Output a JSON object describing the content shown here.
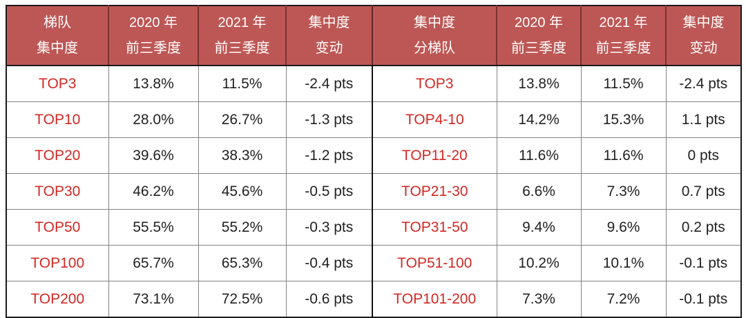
{
  "colors": {
    "header_background": "#bd5755",
    "header_divider": "#7a3331",
    "header_text": "#ffffff",
    "outer_border": "#1a1a1a",
    "grid_line": "#828282",
    "center_divider": "#111111",
    "tier_label_red": "#d22823",
    "value_text": "#212121"
  },
  "chart_data": {
    "type": "table",
    "columns": [
      {
        "key": "tier-left",
        "label": "梯队\n集中度"
      },
      {
        "key": "y2020-left",
        "label": "2020 年\n前三季度"
      },
      {
        "key": "y2021-left",
        "label": "2021 年\n前三季度"
      },
      {
        "key": "change-left",
        "label": "集中度\n变动"
      },
      {
        "key": "tier-right",
        "label": "集中度\n分梯队"
      },
      {
        "key": "y2020-right",
        "label": "2020 年\n前三季度"
      },
      {
        "key": "y2021-right",
        "label": "2021 年\n前三季度"
      },
      {
        "key": "change-right",
        "label": "集中度\n变动"
      }
    ],
    "rows": [
      [
        "TOP3",
        "13.8%",
        "11.5%",
        "-2.4 pts",
        "TOP3",
        "13.8%",
        "11.5%",
        "-2.4 pts"
      ],
      [
        "TOP10",
        "28.0%",
        "26.7%",
        "-1.3 pts",
        "TOP4-10",
        "14.2%",
        "15.3%",
        "1.1 pts"
      ],
      [
        "TOP20",
        "39.6%",
        "38.3%",
        "-1.2 pts",
        "TOP11-20",
        "11.6%",
        "11.6%",
        "0 pts"
      ],
      [
        "TOP30",
        "46.2%",
        "45.6%",
        "-0.5 pts",
        "TOP21-30",
        "6.6%",
        "7.3%",
        "0.7 pts"
      ],
      [
        "TOP50",
        "55.5%",
        "55.2%",
        "-0.3 pts",
        "TOP31-50",
        "9.4%",
        "9.6%",
        "0.2 pts"
      ],
      [
        "TOP100",
        "65.7%",
        "65.3%",
        "-0.4 pts",
        "TOP51-100",
        "10.2%",
        "10.1%",
        "-0.1 pts"
      ],
      [
        "TOP200",
        "73.1%",
        "72.5%",
        "-0.6 pts",
        "TOP101-200",
        "7.3%",
        "7.2%",
        "-0.1 pts"
      ]
    ]
  }
}
